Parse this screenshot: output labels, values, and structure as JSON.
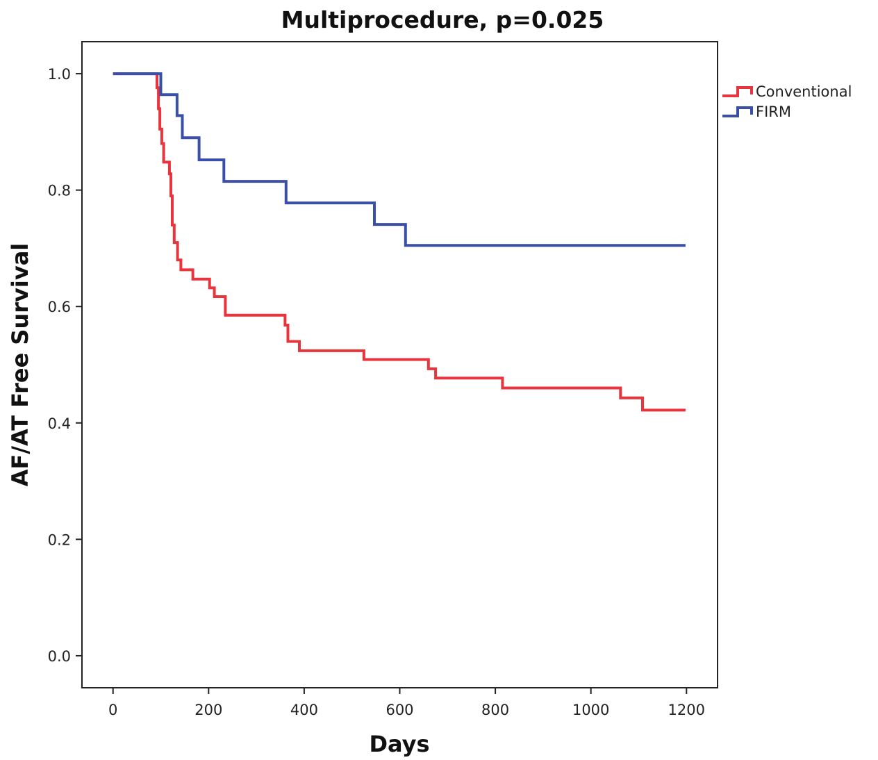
{
  "chart_data": {
    "type": "line",
    "subtype": "kaplan-meier-step",
    "title": "Multiprocedure, p=0.025",
    "xlabel": "Days",
    "ylabel": "AF/AT Free Survival",
    "xlim": [
      -65,
      1265
    ],
    "ylim": [
      -0.055,
      1.055
    ],
    "xticks": [
      0,
      200,
      400,
      600,
      800,
      1000,
      1200
    ],
    "xtick_labels": [
      "0",
      "200",
      "400",
      "600",
      "800",
      "1000",
      "1200"
    ],
    "yticks": [
      0.0,
      0.2,
      0.4,
      0.6,
      0.8,
      1.0
    ],
    "ytick_labels": [
      "0.0",
      "0.2",
      "0.4",
      "0.6",
      "0.8",
      "1.0"
    ],
    "grid": false,
    "legend_position": "right-top, outside plot",
    "series": [
      {
        "name": "Conventional",
        "color": "#e8343d",
        "points": [
          [
            0,
            1.0
          ],
          [
            92,
            1.0
          ],
          [
            92,
            0.976
          ],
          [
            95,
            0.976
          ],
          [
            95,
            0.94
          ],
          [
            98,
            0.94
          ],
          [
            98,
            0.905
          ],
          [
            102,
            0.905
          ],
          [
            102,
            0.88
          ],
          [
            106,
            0.88
          ],
          [
            106,
            0.848
          ],
          [
            118,
            0.848
          ],
          [
            118,
            0.828
          ],
          [
            121,
            0.828
          ],
          [
            121,
            0.79
          ],
          [
            124,
            0.79
          ],
          [
            124,
            0.74
          ],
          [
            128,
            0.74
          ],
          [
            128,
            0.71
          ],
          [
            135,
            0.71
          ],
          [
            135,
            0.68
          ],
          [
            142,
            0.68
          ],
          [
            142,
            0.663
          ],
          [
            167,
            0.663
          ],
          [
            167,
            0.647
          ],
          [
            202,
            0.647
          ],
          [
            202,
            0.632
          ],
          [
            212,
            0.632
          ],
          [
            212,
            0.617
          ],
          [
            235,
            0.617
          ],
          [
            235,
            0.585
          ],
          [
            360,
            0.585
          ],
          [
            360,
            0.568
          ],
          [
            366,
            0.568
          ],
          [
            366,
            0.54
          ],
          [
            390,
            0.54
          ],
          [
            390,
            0.524
          ],
          [
            525,
            0.524
          ],
          [
            525,
            0.509
          ],
          [
            660,
            0.509
          ],
          [
            660,
            0.493
          ],
          [
            675,
            0.493
          ],
          [
            675,
            0.477
          ],
          [
            815,
            0.477
          ],
          [
            815,
            0.46
          ],
          [
            1062,
            0.46
          ],
          [
            1062,
            0.443
          ],
          [
            1108,
            0.443
          ],
          [
            1108,
            0.422
          ],
          [
            1198,
            0.422
          ]
        ]
      },
      {
        "name": "FIRM",
        "color": "#3a4fa8",
        "points": [
          [
            0,
            1.0
          ],
          [
            100,
            1.0
          ],
          [
            100,
            0.964
          ],
          [
            134,
            0.964
          ],
          [
            134,
            0.928
          ],
          [
            145,
            0.928
          ],
          [
            145,
            0.89
          ],
          [
            180,
            0.89
          ],
          [
            180,
            0.852
          ],
          [
            232,
            0.852
          ],
          [
            232,
            0.815
          ],
          [
            362,
            0.815
          ],
          [
            362,
            0.778
          ],
          [
            547,
            0.778
          ],
          [
            547,
            0.741
          ],
          [
            612,
            0.741
          ],
          [
            612,
            0.705
          ],
          [
            1198,
            0.705
          ]
        ]
      }
    ]
  }
}
